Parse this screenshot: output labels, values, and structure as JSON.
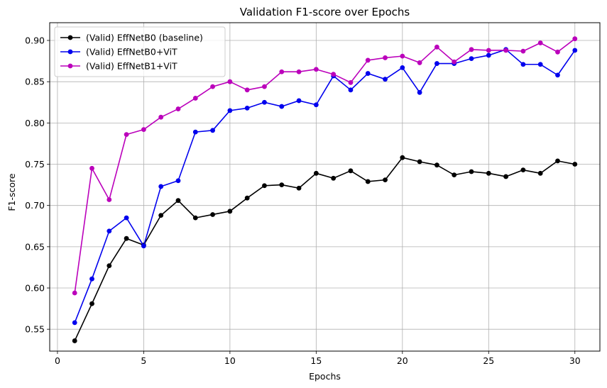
{
  "chart_data": {
    "type": "line",
    "title": "Validation F1-score over Epochs",
    "xlabel": "Epochs",
    "ylabel": "F1-score",
    "xlim": [
      -0.45,
      31.45
    ],
    "ylim": [
      0.5235,
      0.9215
    ],
    "xticks": [
      0,
      5,
      10,
      15,
      20,
      25,
      30
    ],
    "yticks": [
      0.55,
      0.6,
      0.65,
      0.7,
      0.75,
      0.8,
      0.85,
      0.9
    ],
    "ytick_labels": [
      "0.55",
      "0.60",
      "0.65",
      "0.70",
      "0.75",
      "0.80",
      "0.85",
      "0.90"
    ],
    "grid": true,
    "legend_position": "top-left",
    "x": [
      1,
      2,
      3,
      4,
      5,
      6,
      7,
      8,
      9,
      10,
      11,
      12,
      13,
      14,
      15,
      16,
      17,
      18,
      19,
      20,
      21,
      22,
      23,
      24,
      25,
      26,
      27,
      28,
      29,
      30
    ],
    "series": [
      {
        "name": "(Valid) EffNetB0 (baseline)",
        "color": "#000000",
        "values": [
          0.536,
          0.581,
          0.627,
          0.66,
          0.652,
          0.688,
          0.706,
          0.685,
          0.689,
          0.693,
          0.709,
          0.724,
          0.725,
          0.721,
          0.739,
          0.733,
          0.742,
          0.729,
          0.731,
          0.758,
          0.753,
          0.749,
          0.737,
          0.741,
          0.739,
          0.735,
          0.743,
          0.739,
          0.754,
          0.75
        ]
      },
      {
        "name": "(Valid) EffNetB0+ViT",
        "color": "#0000ee",
        "values": [
          0.558,
          0.611,
          0.669,
          0.685,
          0.651,
          0.723,
          0.73,
          0.789,
          0.791,
          0.815,
          0.818,
          0.825,
          0.82,
          0.827,
          0.822,
          0.857,
          0.84,
          0.86,
          0.853,
          0.867,
          0.837,
          0.872,
          0.872,
          0.878,
          0.882,
          0.889,
          0.871,
          0.871,
          0.858,
          0.888
        ]
      },
      {
        "name": "(Valid) EffNetB1+ViT",
        "color": "#bb00bb",
        "values": [
          0.594,
          0.745,
          0.707,
          0.786,
          0.792,
          0.807,
          0.817,
          0.83,
          0.844,
          0.85,
          0.84,
          0.844,
          0.862,
          0.862,
          0.865,
          0.859,
          0.849,
          0.876,
          0.879,
          0.881,
          0.873,
          0.892,
          0.874,
          0.889,
          0.888,
          0.888,
          0.887,
          0.897,
          0.886,
          0.902
        ]
      }
    ]
  }
}
